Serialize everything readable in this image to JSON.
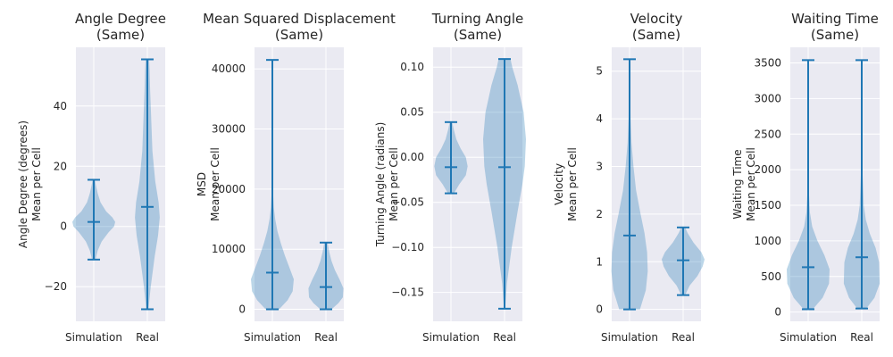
{
  "chart_data": [
    {
      "type": "violin",
      "title": "Angle Degree\n(Same)",
      "ylabel": "Angle Degree (degrees)\nMean per Cell",
      "categories": [
        "Simulation",
        "Real"
      ],
      "ylim": [
        -31.5,
        59.5
      ],
      "yticks": [
        -20,
        0,
        20,
        40
      ],
      "ytick_labels": [
        "−20",
        "0",
        "20",
        "40"
      ],
      "series": [
        {
          "name": "Simulation",
          "min": -11,
          "max": 15.5,
          "median": 1.5,
          "density": [
            [
              -11,
              0.03
            ],
            [
              -8,
              0.07
            ],
            [
              -5,
              0.14
            ],
            [
              -2,
              0.26
            ],
            [
              0,
              0.36
            ],
            [
              1.5,
              0.38
            ],
            [
              3,
              0.33
            ],
            [
              5,
              0.22
            ],
            [
              8,
              0.12
            ],
            [
              11,
              0.07
            ],
            [
              13.5,
              0.04
            ],
            [
              15.5,
              0.02
            ]
          ]
        },
        {
          "name": "Real",
          "min": -27.5,
          "max": 55.5,
          "median": 6.5,
          "density": [
            [
              -27.5,
              0.02
            ],
            [
              -20,
              0.06
            ],
            [
              -10,
              0.13
            ],
            [
              -3,
              0.19
            ],
            [
              3,
              0.22
            ],
            [
              8,
              0.2
            ],
            [
              15,
              0.14
            ],
            [
              25,
              0.09
            ],
            [
              35,
              0.07
            ],
            [
              45,
              0.05
            ],
            [
              52,
              0.04
            ],
            [
              55.5,
              0.03
            ]
          ]
        }
      ]
    },
    {
      "type": "violin",
      "title": "Mean Squared Displacement\n(Same)",
      "ylabel": "MSD\nMean per Cell",
      "categories": [
        "Simulation",
        "Real"
      ],
      "ylim": [
        -2000,
        43600
      ],
      "yticks": [
        0,
        10000,
        20000,
        30000,
        40000
      ],
      "ytick_labels": [
        "0",
        "10000",
        "20000",
        "30000",
        "40000"
      ],
      "series": [
        {
          "name": "Simulation",
          "min": 0,
          "max": 41500,
          "median": 6100,
          "density": [
            [
              0,
              0.12
            ],
            [
              1500,
              0.27
            ],
            [
              3000,
              0.36
            ],
            [
              5000,
              0.38
            ],
            [
              7000,
              0.3
            ],
            [
              9000,
              0.22
            ],
            [
              11000,
              0.15
            ],
            [
              13000,
              0.09
            ],
            [
              15000,
              0.05
            ],
            [
              17000,
              0.025
            ],
            [
              20000,
              0.01
            ],
            [
              25000,
              0.004
            ],
            [
              41500,
              0.002
            ]
          ]
        },
        {
          "name": "Real",
          "min": 0,
          "max": 11100,
          "median": 3700,
          "density": [
            [
              0,
              0.1
            ],
            [
              1000,
              0.22
            ],
            [
              2000,
              0.3
            ],
            [
              3500,
              0.31
            ],
            [
              5000,
              0.24
            ],
            [
              6500,
              0.16
            ],
            [
              8000,
              0.1
            ],
            [
              9500,
              0.06
            ],
            [
              10500,
              0.04
            ],
            [
              11100,
              0.03
            ]
          ]
        }
      ]
    },
    {
      "type": "violin",
      "title": "Turning Angle\n(Same)",
      "ylabel": "Turning Angle (radians)\nMean per Cell",
      "categories": [
        "Simulation",
        "Real"
      ],
      "ylim": [
        -0.182,
        0.122
      ],
      "yticks": [
        -0.15,
        -0.1,
        -0.05,
        0.0,
        0.05,
        0.1
      ],
      "ytick_labels": [
        "−0.15",
        "−0.10",
        "−0.05",
        "0.00",
        "0.05",
        "0.10"
      ],
      "series": [
        {
          "name": "Simulation",
          "min": -0.04,
          "max": 0.039,
          "median": -0.011,
          "density": [
            [
              -0.04,
              0.05
            ],
            [
              -0.03,
              0.14
            ],
            [
              -0.02,
              0.25
            ],
            [
              -0.01,
              0.28
            ],
            [
              0.0,
              0.25
            ],
            [
              0.01,
              0.16
            ],
            [
              0.02,
              0.09
            ],
            [
              0.03,
              0.05
            ],
            [
              0.039,
              0.02
            ]
          ]
        },
        {
          "name": "Real",
          "min": -0.168,
          "max": 0.109,
          "median": -0.011,
          "density": [
            [
              -0.168,
              0.01
            ],
            [
              -0.14,
              0.04
            ],
            [
              -0.1,
              0.12
            ],
            [
              -0.06,
              0.22
            ],
            [
              -0.03,
              0.3
            ],
            [
              -0.01,
              0.34
            ],
            [
              0.02,
              0.36
            ],
            [
              0.05,
              0.32
            ],
            [
              0.08,
              0.22
            ],
            [
              0.1,
              0.13
            ],
            [
              0.109,
              0.1
            ]
          ]
        }
      ]
    },
    {
      "type": "violin",
      "title": "Velocity\n(Same)",
      "ylabel": "Velocity\nMean per Cell",
      "categories": [
        "Simulation",
        "Real"
      ],
      "ylim": [
        -0.25,
        5.5
      ],
      "yticks": [
        0,
        1,
        2,
        3,
        4,
        5
      ],
      "ytick_labels": [
        "0",
        "1",
        "2",
        "3",
        "4",
        "5"
      ],
      "series": [
        {
          "name": "Simulation",
          "min": 0.0,
          "max": 5.25,
          "median": 1.55,
          "density": [
            [
              0,
              0.16
            ],
            [
              0.4,
              0.25
            ],
            [
              0.8,
              0.28
            ],
            [
              1.2,
              0.27
            ],
            [
              1.6,
              0.23
            ],
            [
              2.0,
              0.17
            ],
            [
              2.5,
              0.1
            ],
            [
              3.0,
              0.06
            ],
            [
              3.5,
              0.03
            ],
            [
              4.0,
              0.015
            ],
            [
              5.25,
              0.005
            ]
          ]
        },
        {
          "name": "Real",
          "min": 0.3,
          "max": 1.72,
          "median": 1.03,
          "density": [
            [
              0.3,
              0.03
            ],
            [
              0.5,
              0.1
            ],
            [
              0.7,
              0.22
            ],
            [
              0.9,
              0.3
            ],
            [
              1.05,
              0.33
            ],
            [
              1.2,
              0.28
            ],
            [
              1.4,
              0.16
            ],
            [
              1.6,
              0.07
            ],
            [
              1.72,
              0.03
            ]
          ]
        }
      ]
    },
    {
      "type": "violin",
      "title": "Waiting Time\n(Same)",
      "ylabel": "Waiting Time\nMean per Cell",
      "categories": [
        "Simulation",
        "Real"
      ],
      "ylim": [
        -130,
        3720
      ],
      "yticks": [
        0,
        500,
        1000,
        1500,
        2000,
        2500,
        3000,
        3500
      ],
      "ytick_labels": [
        "0",
        "500",
        "1000",
        "1500",
        "2000",
        "2500",
        "3000",
        "3500"
      ],
      "series": [
        {
          "name": "Simulation",
          "min": 40,
          "max": 3540,
          "median": 630,
          "density": [
            [
              40,
              0.08
            ],
            [
              200,
              0.25
            ],
            [
              400,
              0.36
            ],
            [
              600,
              0.37
            ],
            [
              800,
              0.28
            ],
            [
              1000,
              0.16
            ],
            [
              1200,
              0.07
            ],
            [
              1400,
              0.03
            ],
            [
              1700,
              0.012
            ],
            [
              2200,
              0.005
            ],
            [
              3540,
              0.002
            ]
          ]
        },
        {
          "name": "Real",
          "min": 50,
          "max": 3540,
          "median": 770,
          "density": [
            [
              50,
              0.08
            ],
            [
              200,
              0.22
            ],
            [
              400,
              0.31
            ],
            [
              700,
              0.3
            ],
            [
              900,
              0.24
            ],
            [
              1100,
              0.14
            ],
            [
              1300,
              0.07
            ],
            [
              1500,
              0.035
            ],
            [
              2000,
              0.012
            ],
            [
              2700,
              0.006
            ],
            [
              3540,
              0.003
            ]
          ]
        }
      ]
    }
  ]
}
